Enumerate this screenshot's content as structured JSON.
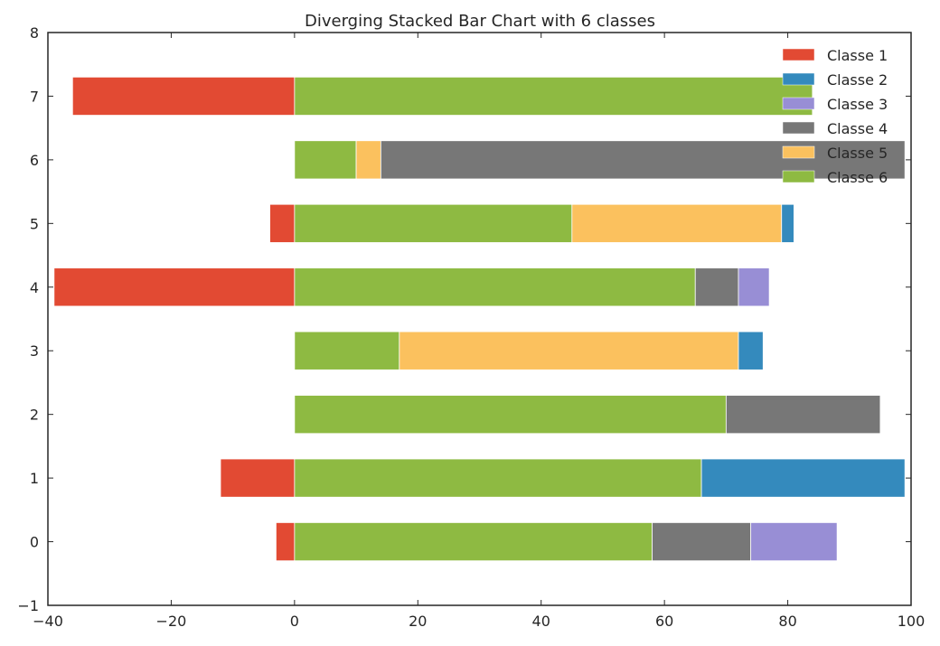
{
  "chart_data": {
    "type": "bar",
    "orientation": "horizontal",
    "stacked": true,
    "diverging": true,
    "title": "Diverging Stacked Bar Chart with 6 classes",
    "xlabel": "",
    "ylabel": "",
    "xlim": [
      -40,
      100
    ],
    "ylim": [
      -1,
      8
    ],
    "xticks": [
      -40,
      -20,
      0,
      20,
      40,
      60,
      80,
      100
    ],
    "yticks": [
      -1,
      0,
      1,
      2,
      3,
      4,
      5,
      6,
      7,
      8
    ],
    "xtick_labels": [
      "−40",
      "−20",
      "0",
      "20",
      "40",
      "60",
      "80",
      "100"
    ],
    "ytick_labels": [
      "−1",
      "0",
      "1",
      "2",
      "3",
      "4",
      "5",
      "6",
      "7",
      "8"
    ],
    "categories": [
      0,
      1,
      2,
      3,
      4,
      5,
      6,
      7
    ],
    "grid": false,
    "legend_position": "top-right",
    "series": [
      {
        "name": "Classe 1",
        "color": "#E24A33",
        "values": [
          -3,
          -12,
          0,
          0,
          -39,
          -4,
          0,
          -36
        ]
      },
      {
        "name": "Classe 2",
        "color": "#348ABD",
        "values": [
          0,
          33,
          0,
          4,
          0,
          2,
          0,
          0
        ]
      },
      {
        "name": "Classe 3",
        "color": "#988ED5",
        "values": [
          14,
          0,
          0,
          0,
          5,
          0,
          0,
          0
        ]
      },
      {
        "name": "Classe 4",
        "color": "#777777",
        "values": [
          16,
          0,
          25,
          0,
          7,
          0,
          85,
          0
        ]
      },
      {
        "name": "Classe 5",
        "color": "#FBC15E",
        "values": [
          0,
          0,
          0,
          55,
          0,
          34,
          4,
          0
        ]
      },
      {
        "name": "Classe 6",
        "color": "#8EBA42",
        "values": [
          58,
          66,
          70,
          17,
          65,
          45,
          10,
          84
        ]
      }
    ],
    "stack_order_positive": [
      "Classe 6",
      "Classe 5",
      "Classe 4",
      "Classe 3",
      "Classe 2"
    ],
    "stack_order_negative": [
      "Classe 1"
    ]
  }
}
